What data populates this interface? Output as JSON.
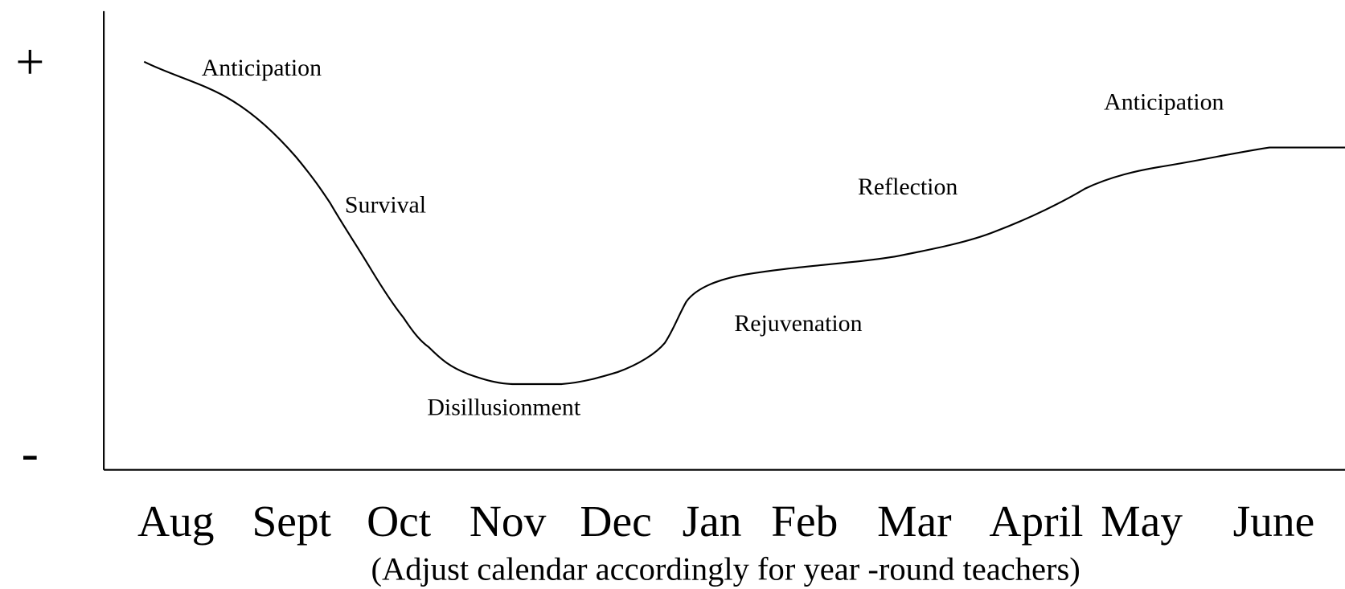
{
  "axis": {
    "top_label": "+",
    "bottom_label": "-"
  },
  "phases": [
    "Anticipation",
    "Survival",
    "Disillusionment",
    "Rejuvenation",
    "Reflection",
    "Anticipation"
  ],
  "months": [
    "Aug",
    "Sept",
    "Oct",
    "Nov",
    "Dec",
    "Jan",
    "Feb",
    "Mar",
    "April",
    "May",
    "June"
  ],
  "note": "(Adjust calendar accordingly for year -round teachers)"
}
